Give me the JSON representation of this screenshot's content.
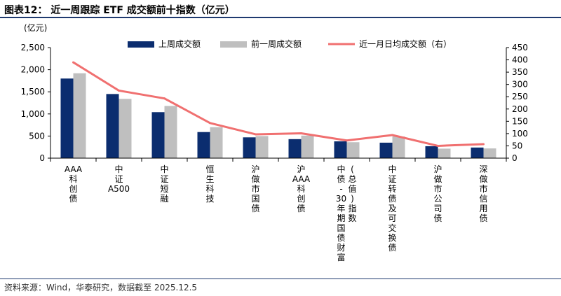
{
  "page": {
    "title": "图表12：  近一周跟踪 ETF 成交额前十指数（亿元）",
    "source": "资料来源：Wind，华泰研究，数据截至 2025.12.5"
  },
  "chart_data": {
    "type": "bar",
    "left_unit_label": "(亿元)",
    "categories": [
      "AAA科创债",
      "中证A500",
      "中证短融",
      "恒生科技",
      "沪做市国债",
      "沪AAA科创债",
      "中债-30年期国债财富(总值)指数",
      "中证转债及可交换债",
      "沪做市公司债",
      "深做市信用债"
    ],
    "series": [
      {
        "name": "上周成交额",
        "kind": "bar",
        "axis": "left",
        "color": "#0b2d6f",
        "values": [
          1800,
          1450,
          1040,
          590,
          470,
          430,
          380,
          350,
          270,
          240
        ]
      },
      {
        "name": "前一周成交额",
        "kind": "bar",
        "axis": "left",
        "color": "#bfbfbf",
        "values": [
          1920,
          1340,
          1180,
          700,
          500,
          510,
          360,
          490,
          215,
          220
        ]
      },
      {
        "name": "近一月日均成交额（右）",
        "kind": "line",
        "axis": "right",
        "color": "#f07070",
        "values": [
          390,
          275,
          243,
          143,
          97,
          101,
          72,
          94,
          50,
          57
        ]
      }
    ],
    "y_left": {
      "min": 0,
      "max": 2500,
      "ticks": [
        0,
        500,
        1000,
        1500,
        2000,
        2500
      ],
      "tick_labels": [
        "0",
        "500",
        "1,000",
        "1,500",
        "2,000",
        "2,500"
      ]
    },
    "y_right": {
      "min": 0,
      "max": 450,
      "ticks": [
        0,
        50,
        100,
        150,
        200,
        250,
        300,
        350,
        400,
        450
      ],
      "tick_labels": [
        "0",
        "50",
        "100",
        "150",
        "200",
        "250",
        "300",
        "350",
        "400",
        "450"
      ]
    },
    "grid": false,
    "legend_position": "top"
  }
}
